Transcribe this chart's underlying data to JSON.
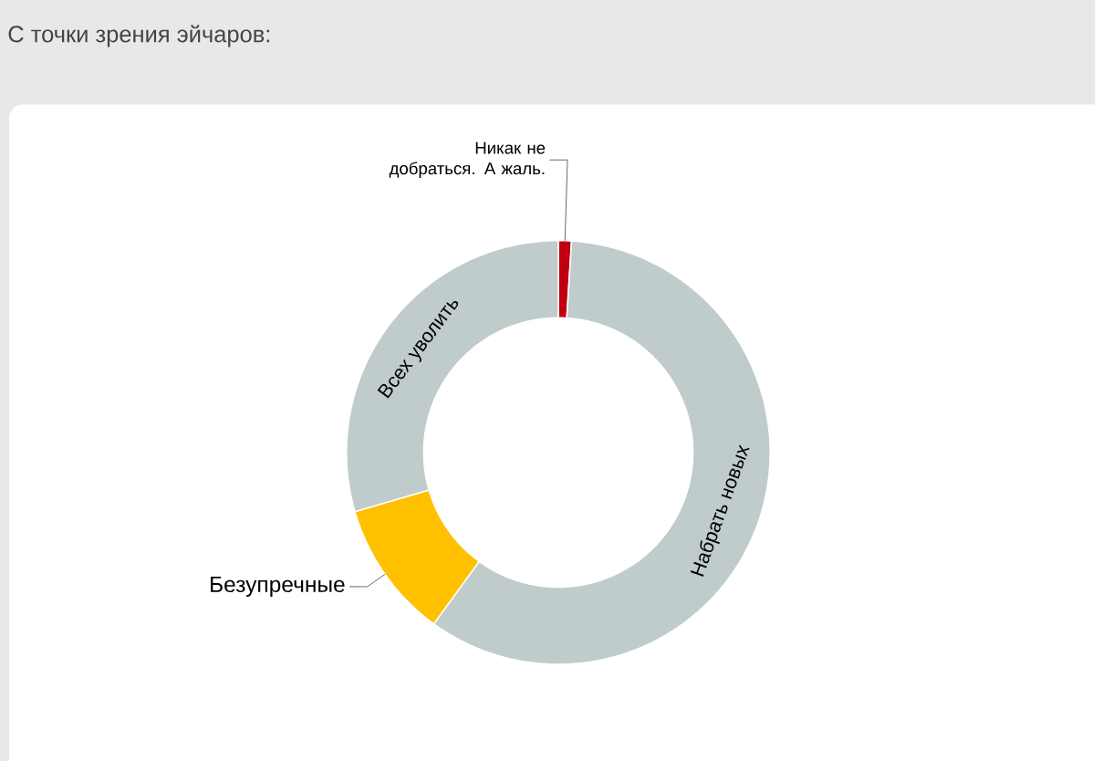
{
  "chart_data": {
    "type": "donut",
    "title": "С точки зрения эйчаров:",
    "categories": [
      "Никак не добраться. А жаль.",
      "Набрать новых",
      "Безупречные",
      "Всех уволить"
    ],
    "values": [
      1,
      59,
      10.5,
      29.5
    ],
    "colors": [
      "#c00010",
      "#bfcccb",
      "#ffc000",
      "#bfcccb"
    ]
  }
}
